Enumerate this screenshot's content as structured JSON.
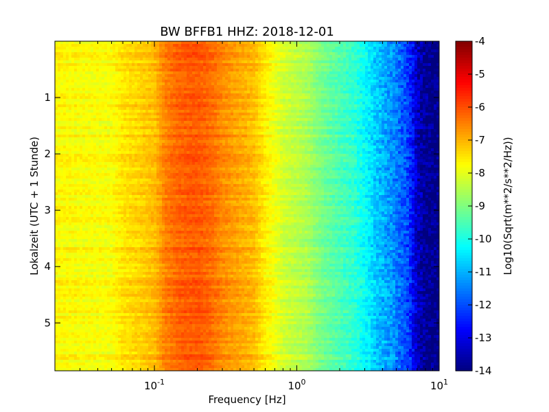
{
  "chart_data": {
    "type": "heatmap",
    "title": "BW BFFB1 HHZ: 2018-12-01",
    "xlabel": "Frequency [Hz]",
    "ylabel": "Lokalzeit (UTC + 1 Stunde)",
    "x_scale": "log",
    "xlim": [
      0.02,
      10
    ],
    "ylim": [
      5.85,
      0
    ],
    "x_ticks": [
      {
        "value": 0.1,
        "base": "10",
        "exp": "-1"
      },
      {
        "value": 1,
        "base": "10",
        "exp": "0"
      },
      {
        "value": 10,
        "base": "10",
        "exp": "1"
      }
    ],
    "y_ticks": [
      {
        "value": 1,
        "label": "1"
      },
      {
        "value": 2,
        "label": "2"
      },
      {
        "value": 3,
        "label": "3"
      },
      {
        "value": 4,
        "label": "4"
      },
      {
        "value": 5,
        "label": "5"
      }
    ],
    "colorbar": {
      "label": "Log10(Sqrt(m**2/s**2/Hz))",
      "colormap": "jet",
      "range": [
        -14,
        -4
      ],
      "ticks": [
        {
          "value": -4,
          "label": "-4"
        },
        {
          "value": -5,
          "label": "-5"
        },
        {
          "value": -6,
          "label": "-6"
        },
        {
          "value": -7,
          "label": "-7"
        },
        {
          "value": -8,
          "label": "-8"
        },
        {
          "value": -9,
          "label": "-9"
        },
        {
          "value": -10,
          "label": "-10"
        },
        {
          "value": -11,
          "label": "-11"
        },
        {
          "value": -12,
          "label": "-12"
        },
        {
          "value": -13,
          "label": "-13"
        },
        {
          "value": -14,
          "label": "-14"
        }
      ]
    },
    "spectrum_profile": {
      "frequency_hz": [
        0.02,
        0.035,
        0.05,
        0.06,
        0.08,
        0.1,
        0.12,
        0.15,
        0.2,
        0.25,
        0.3,
        0.4,
        0.5,
        0.6,
        0.7,
        0.8,
        1.0,
        1.2,
        1.5,
        2.0,
        2.5,
        3.0,
        3.5,
        4.0,
        5.0,
        6.0,
        7.0,
        8.0,
        10.0
      ],
      "level": [
        -7.7,
        -7.8,
        -7.8,
        -7.5,
        -7.3,
        -7.1,
        -6.5,
        -6.2,
        -6.1,
        -6.3,
        -6.6,
        -6.9,
        -7.1,
        -7.6,
        -7.9,
        -8.2,
        -8.4,
        -8.6,
        -9.1,
        -9.5,
        -9.8,
        -10.2,
        -10.7,
        -11.0,
        -11.5,
        -12.1,
        -13.3,
        -13.9,
        -14.0
      ]
    },
    "time_hours": [
      0.0,
      5.85
    ]
  }
}
